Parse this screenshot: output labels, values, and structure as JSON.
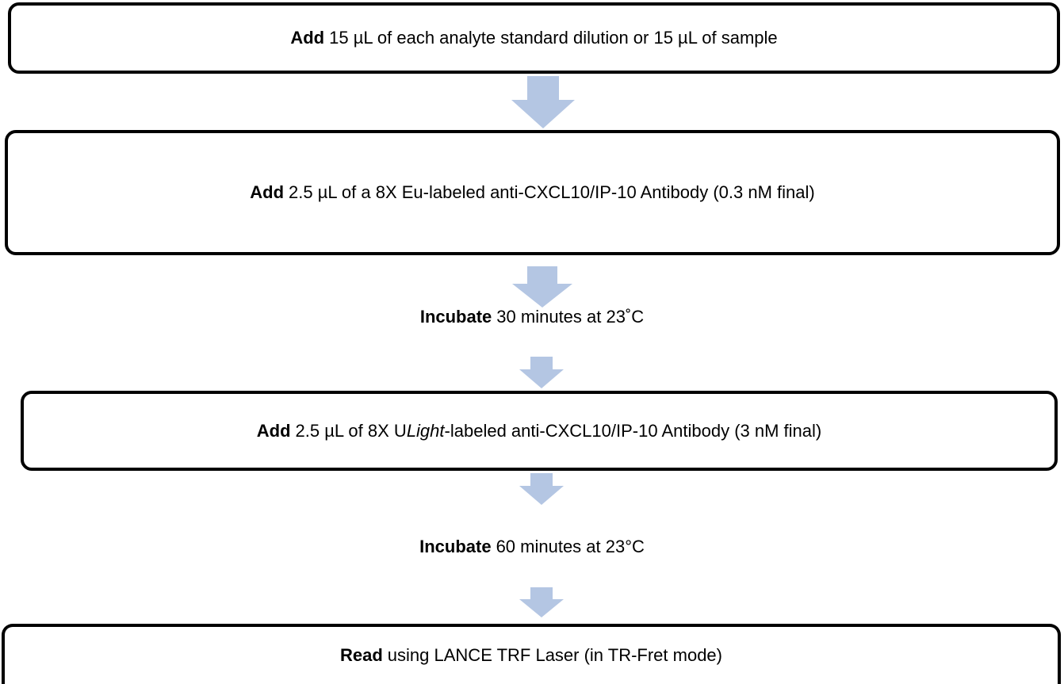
{
  "colors": {
    "arrow": "#b4c6e3",
    "border": "#000000"
  },
  "steps": [
    {
      "verb": "Add",
      "text": "15 µL of each analyte standard dilution or 15 µL of sample",
      "boxed": true
    },
    {
      "verb": "Add",
      "text": "2.5 µL of a 8X Eu-labeled anti-CXCL10/IP-10 Antibody (0.3 nM final)",
      "boxed": true
    },
    {
      "verb": "Incubate",
      "text": "30 minutes at 23˚C",
      "boxed": false
    },
    {
      "verb": "Add",
      "text_before": "2.5 µL of 8X U",
      "text_italic": "Light",
      "text_after": "-labeled anti-CXCL10/IP-10 Antibody (3 nM final)",
      "boxed": true
    },
    {
      "verb": "Incubate",
      "text": "60 minutes at 23°C",
      "boxed": false
    },
    {
      "verb": "Read",
      "text": "using LANCE TRF Laser (in TR-Fret mode)",
      "boxed": true
    }
  ]
}
